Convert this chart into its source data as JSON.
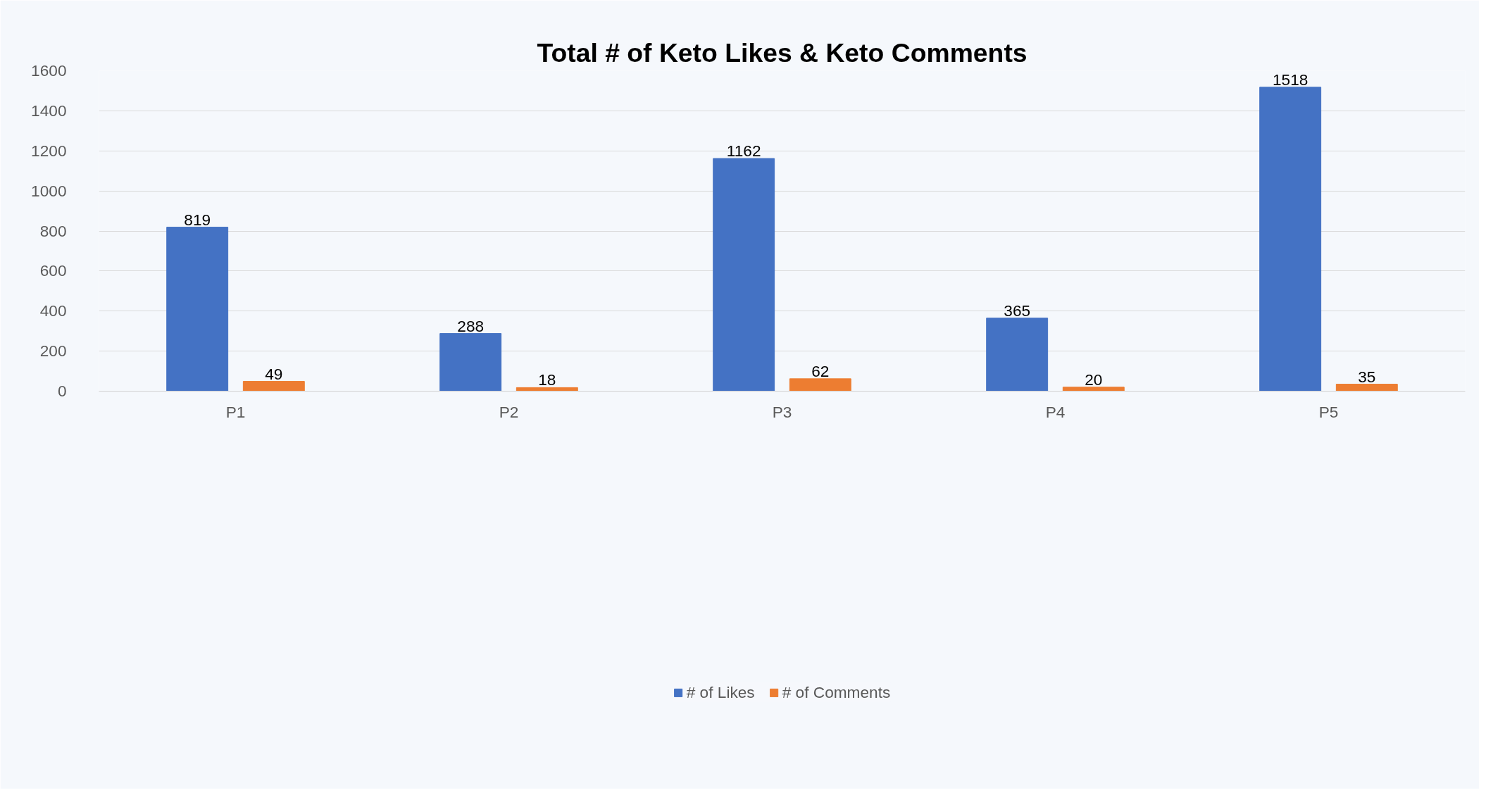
{
  "chart_data": {
    "type": "bar",
    "title": "Total # of Keto Likes & Keto Comments",
    "categories": [
      "P1",
      "P2",
      "P3",
      "P4",
      "P5"
    ],
    "series": [
      {
        "name": "# of Likes",
        "color": "#4472c4",
        "values": [
          819,
          288,
          1162,
          365,
          1518
        ]
      },
      {
        "name": "# of Comments",
        "color": "#ed7d31",
        "values": [
          49,
          18,
          62,
          20,
          35
        ]
      }
    ],
    "ylim": [
      0,
      1600
    ],
    "yticks": [
      0,
      200,
      400,
      600,
      800,
      1000,
      1200,
      1400,
      1600
    ],
    "grid": "y",
    "legend": "bottom",
    "data_labels": true
  }
}
